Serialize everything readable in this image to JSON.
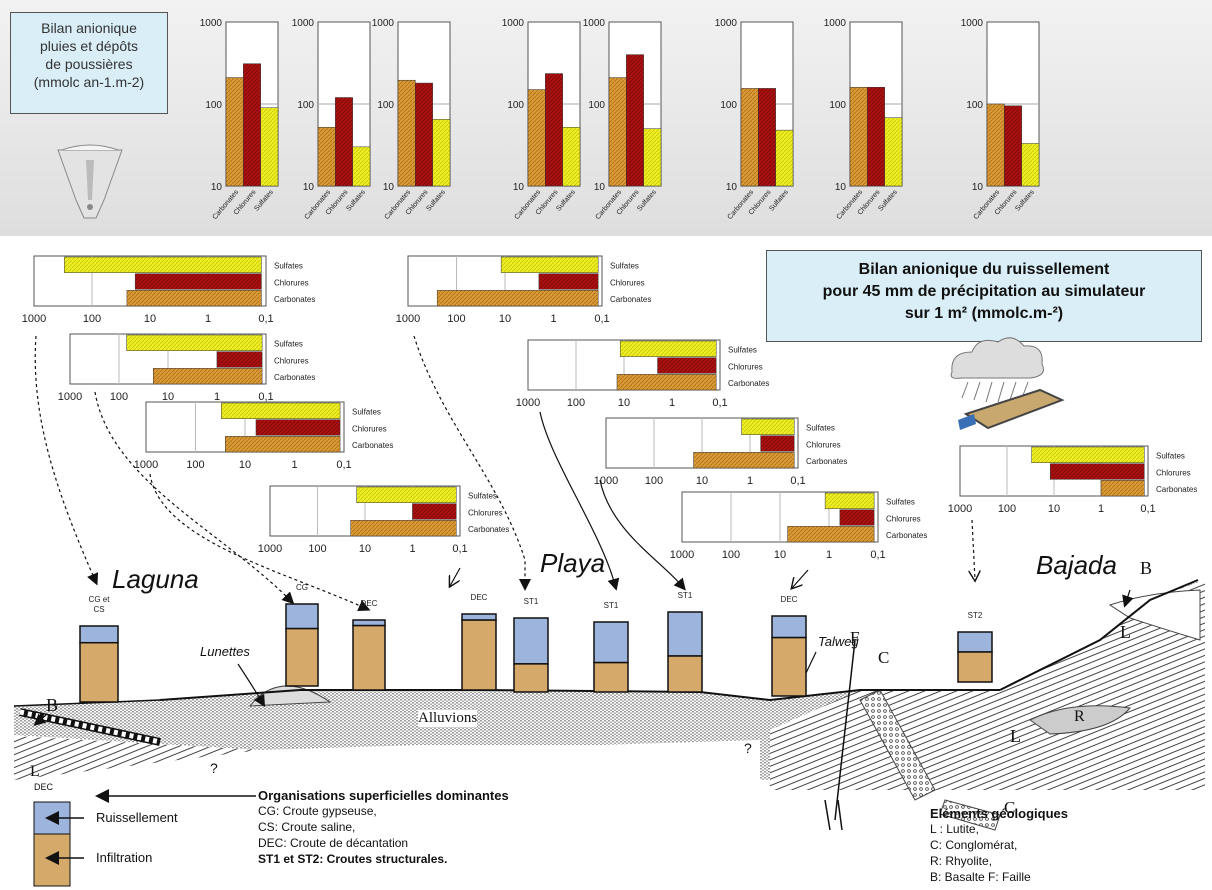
{
  "precip": {
    "title_l1": "Bilan anionique",
    "title_l2": "pluies et dépôts",
    "title_l3": "de poussières",
    "title_l4": "(mmolc an-1.m-2)",
    "y_ticks": [
      "1000",
      "100",
      "10"
    ]
  },
  "runoff": {
    "title_l1": "Bilan anionique du ruissellement",
    "title_l2": "pour 45 mm de précipitation au simulateur",
    "title_l3": "sur 1 m² (mmolc.m-²)",
    "x_ticks": [
      "1000",
      "100",
      "10",
      "1",
      "0,1"
    ]
  },
  "categories": [
    "Carbonates",
    "Chlorures",
    "Sulfates"
  ],
  "colors": {
    "carbonates": "#d99a33",
    "chlorures": "#aa1010",
    "sulfates": "#eeee22",
    "ruissellement": "#9db4dc",
    "infiltration": "#d4a96a"
  },
  "chart_data": [
    {
      "type": "bar",
      "group": "precipitation",
      "categories": [
        "Carbonates",
        "Chlorures",
        "Sulfates"
      ],
      "values": [
        210,
        310,
        90
      ],
      "ylim": [
        10,
        1000
      ],
      "yscale": "log"
    },
    {
      "type": "bar",
      "group": "precipitation",
      "categories": [
        "Carbonates",
        "Chlorures",
        "Sulfates"
      ],
      "values": [
        52,
        120,
        30
      ],
      "ylim": [
        10,
        1000
      ],
      "yscale": "log"
    },
    {
      "type": "bar",
      "group": "precipitation",
      "categories": [
        "Carbonates",
        "Chlorures",
        "Sulfates"
      ],
      "values": [
        195,
        180,
        65
      ],
      "ylim": [
        10,
        1000
      ],
      "yscale": "log"
    },
    {
      "type": "bar",
      "group": "precipitation",
      "categories": [
        "Carbonates",
        "Chlorures",
        "Sulfates"
      ],
      "values": [
        150,
        235,
        52
      ],
      "ylim": [
        10,
        1000
      ],
      "yscale": "log"
    },
    {
      "type": "bar",
      "group": "precipitation",
      "categories": [
        "Carbonates",
        "Chlorures",
        "Sulfates"
      ],
      "values": [
        210,
        400,
        50
      ],
      "ylim": [
        10,
        1000
      ],
      "yscale": "log"
    },
    {
      "type": "bar",
      "group": "precipitation",
      "categories": [
        "Carbonates",
        "Chlorures",
        "Sulfates"
      ],
      "values": [
        155,
        155,
        48
      ],
      "ylim": [
        10,
        1000
      ],
      "yscale": "log"
    },
    {
      "type": "bar",
      "group": "precipitation",
      "categories": [
        "Carbonates",
        "Chlorures",
        "Sulfates"
      ],
      "values": [
        160,
        160,
        68
      ],
      "ylim": [
        10,
        1000
      ],
      "yscale": "log"
    },
    {
      "type": "bar",
      "group": "precipitation",
      "categories": [
        "Carbonates",
        "Chlorures",
        "Sulfates"
      ],
      "values": [
        100,
        95,
        33
      ],
      "ylim": [
        10,
        1000
      ],
      "yscale": "log"
    },
    {
      "type": "bar",
      "group": "runoff",
      "orientation": "horizontal",
      "categories": [
        "Sulfates",
        "Chlorures",
        "Carbonates"
      ],
      "values": [
        0.12,
        0.12,
        0.12
      ],
      "starts": [
        300,
        18,
        25
      ],
      "xlim": [
        1000,
        0.1
      ],
      "xscale": "log-reversed"
    },
    {
      "type": "bar",
      "group": "runoff",
      "orientation": "horizontal",
      "categories": [
        "Sulfates",
        "Chlorures",
        "Carbonates"
      ],
      "values": [
        0.12,
        0.12,
        0.12
      ],
      "starts": [
        70,
        1,
        20
      ],
      "xlim": [
        1000,
        0.1
      ],
      "xscale": "log-reversed"
    },
    {
      "type": "bar",
      "group": "runoff",
      "orientation": "horizontal",
      "categories": [
        "Sulfates",
        "Chlorures",
        "Carbonates"
      ],
      "values": [
        0.12,
        0.12,
        0.12
      ],
      "starts": [
        30,
        6,
        25
      ],
      "xlim": [
        1000,
        0.1
      ],
      "xscale": "log-reversed"
    },
    {
      "type": "bar",
      "group": "runoff",
      "orientation": "horizontal",
      "categories": [
        "Sulfates",
        "Chlorures",
        "Carbonates"
      ],
      "values": [
        0.12,
        0.12,
        0.12
      ],
      "starts": [
        15,
        1,
        20
      ],
      "xlim": [
        1000,
        0.1
      ],
      "xscale": "log-reversed"
    },
    {
      "type": "bar",
      "group": "runoff",
      "orientation": "horizontal",
      "categories": [
        "Sulfates",
        "Chlorures",
        "Carbonates"
      ],
      "values": [
        0.12,
        0.12,
        0.12
      ],
      "starts": [
        12,
        2,
        250
      ],
      "xlim": [
        1000,
        0.1
      ],
      "xscale": "log-reversed"
    },
    {
      "type": "bar",
      "group": "runoff",
      "orientation": "horizontal",
      "categories": [
        "Sulfates",
        "Chlorures",
        "Carbonates"
      ],
      "values": [
        0.12,
        0.12,
        0.12
      ],
      "starts": [
        12,
        2,
        14
      ],
      "xlim": [
        1000,
        0.1
      ],
      "xscale": "log-reversed"
    },
    {
      "type": "bar",
      "group": "runoff",
      "orientation": "horizontal",
      "categories": [
        "Sulfates",
        "Chlorures",
        "Carbonates"
      ],
      "values": [
        0.12,
        0.12,
        0.12
      ],
      "starts": [
        1.5,
        0.6,
        15
      ],
      "xlim": [
        1000,
        0.1
      ],
      "xscale": "log-reversed"
    },
    {
      "type": "bar",
      "group": "runoff",
      "orientation": "horizontal",
      "categories": [
        "Sulfates",
        "Chlorures",
        "Carbonates"
      ],
      "values": [
        0.12,
        0.12,
        0.12
      ],
      "starts": [
        1.2,
        0.6,
        7
      ],
      "xlim": [
        1000,
        0.1
      ],
      "xscale": "log-reversed"
    },
    {
      "type": "bar",
      "group": "runoff",
      "orientation": "horizontal",
      "categories": [
        "Sulfates",
        "Chlorures",
        "Carbonates"
      ],
      "values": [
        0.12,
        0.12,
        0.12
      ],
      "starts": [
        30,
        12,
        1
      ],
      "xlim": [
        1000,
        0.1
      ],
      "xscale": "log-reversed"
    }
  ],
  "profile": {
    "places": {
      "laguna": "Laguna",
      "playa": "Playa",
      "bajada": "Bajada"
    },
    "columns": [
      {
        "label_l1": "CG et",
        "label_l2": "CS",
        "runoff_fraction": 0.22
      },
      {
        "label_l1": "CG",
        "label_l2": "",
        "runoff_fraction": 0.3
      },
      {
        "label_l1": "DEC",
        "label_l2": "",
        "runoff_fraction": 0.08
      },
      {
        "label_l1": "DEC",
        "label_l2": "",
        "runoff_fraction": 0.08
      },
      {
        "label_l1": "ST1",
        "label_l2": "",
        "runoff_fraction": 0.62
      },
      {
        "label_l1": "ST1",
        "label_l2": "",
        "runoff_fraction": 0.58
      },
      {
        "label_l1": "ST1",
        "label_l2": "",
        "runoff_fraction": 0.55
      },
      {
        "label_l1": "DEC",
        "label_l2": "",
        "runoff_fraction": 0.27
      },
      {
        "label_l1": "ST2",
        "label_l2": "",
        "runoff_fraction": 0.4
      }
    ],
    "lunettes": "Lunettes",
    "talweg": "Talweg",
    "alluvions": "Alluvions",
    "geo_letters": {
      "b": "B",
      "l": "L",
      "c": "C",
      "r": "R",
      "f": "F",
      "q": "?"
    }
  },
  "legend_left": {
    "dec": "DEC",
    "ruissellement": "Ruissellement",
    "infiltration": "Infiltration"
  },
  "legend_mid": {
    "title": "Organisations superficielles  dominantes",
    "cg": "CG: Croute  gypseuse,",
    "cs": "CS: Croute saline,",
    "dec": "DEC: Croute  de décantation",
    "st": "ST1 et ST2: Croutes structurales."
  },
  "legend_right": {
    "title": "Eléments géologiques",
    "l": "L : Lutite,",
    "c": "C: Conglomérat,",
    "r": "R: Rhyolite,",
    "bf": "B: Basalte F: Faille"
  }
}
